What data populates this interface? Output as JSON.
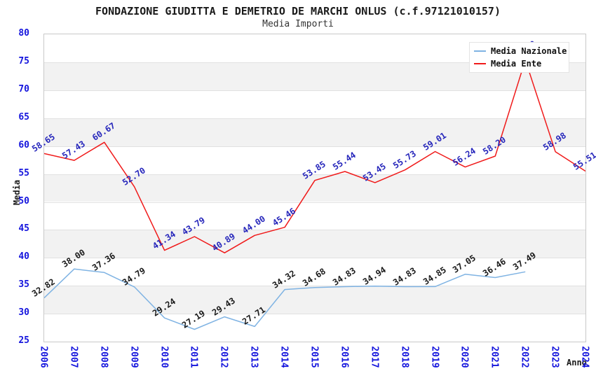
{
  "chart_data": {
    "type": "line",
    "title": "FONDAZIONE GIUDITTA E DEMETRIO DE MARCHI ONLUS (c.f.97121010157)",
    "subtitle": "Media Importi",
    "xlabel": "Anno",
    "ylabel": "Media",
    "ylim": [
      25,
      80
    ],
    "yticks": [
      25,
      30,
      35,
      40,
      45,
      50,
      55,
      60,
      65,
      70,
      75,
      80
    ],
    "categories": [
      "2006",
      "2007",
      "2008",
      "2009",
      "2010",
      "2011",
      "2012",
      "2013",
      "2014",
      "2015",
      "2016",
      "2017",
      "2018",
      "2019",
      "2020",
      "2021",
      "2022",
      "2023",
      "2024"
    ],
    "series": [
      {
        "name": "Media Nazionale",
        "color": "#7fb3e3",
        "label_color": "#1a1a1a",
        "values": [
          32.82,
          38.0,
          37.36,
          34.79,
          29.24,
          27.19,
          29.43,
          27.71,
          34.32,
          34.68,
          34.83,
          34.94,
          34.83,
          34.85,
          37.05,
          36.46,
          37.49,
          null,
          null
        ]
      },
      {
        "name": "Media Ente",
        "color": "#f01a1a",
        "label_color": "#2626bb",
        "values": [
          58.65,
          57.43,
          60.67,
          52.7,
          41.34,
          43.79,
          40.89,
          44.0,
          45.46,
          53.85,
          55.44,
          53.45,
          55.73,
          59.01,
          56.24,
          58.2,
          75.4,
          58.98,
          55.51
        ]
      }
    ],
    "legend_position": "top-right",
    "grid": "horizontal-bands",
    "colors": {
      "band_gray": "#f2f2f2",
      "grid_line": "#e1e1e1",
      "plot_border": "#c9c9c9",
      "axis_tick_text": "#1414dd",
      "title_text": "#1a1a1a"
    }
  }
}
